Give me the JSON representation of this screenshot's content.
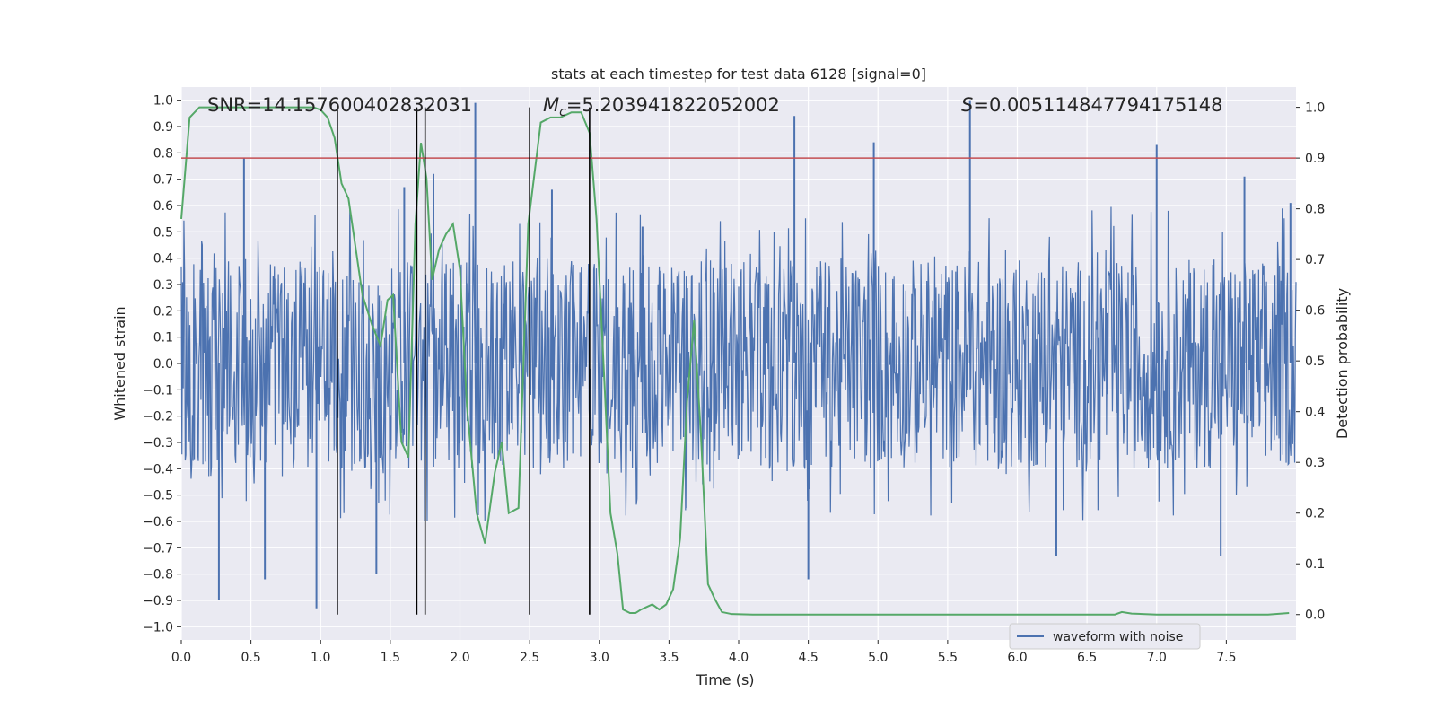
{
  "chart_data": {
    "type": "line",
    "title": "stats at each timestep for test data 6128 [signal=0]",
    "xlabel": "Time (s)",
    "ylabel_left": "Whitened strain",
    "ylabel_right": "Detection probability",
    "xlim": [
      0.0,
      8.0
    ],
    "ylim_left": [
      -1.05,
      1.05
    ],
    "ylim_right": [
      -0.05,
      1.04
    ],
    "x_ticks": [
      "0.0",
      "0.5",
      "1.0",
      "1.5",
      "2.0",
      "2.5",
      "3.0",
      "3.5",
      "4.0",
      "4.5",
      "5.0",
      "5.5",
      "6.0",
      "6.5",
      "7.0",
      "7.5"
    ],
    "y_ticks_left": [
      "1.0",
      "0.9",
      "0.8",
      "0.7",
      "0.6",
      "0.5",
      "0.4",
      "0.3",
      "0.2",
      "0.1",
      "0.0",
      "−0.1",
      "−0.2",
      "−0.3",
      "−0.4",
      "−0.5",
      "−0.6",
      "−0.7",
      "−0.8",
      "−0.9",
      "−1.0"
    ],
    "y_ticks_right": [
      "1.0",
      "0.9",
      "0.8",
      "0.7",
      "0.6",
      "0.5",
      "0.4",
      "0.3",
      "0.2",
      "0.1",
      "0.0"
    ],
    "grid": true,
    "legend_position": "lower-right",
    "annotations": {
      "snr": "SNR=14.157600402832031",
      "mc_symbol": "M",
      "mc_sub": "c",
      "mc_value": "=5.203941822052002",
      "s_symbol": "S",
      "s_value": "=0.005114847794175148"
    },
    "colors": {
      "waveform": "#4c72b0",
      "probability": "#55a868",
      "threshold": "#c44e52",
      "markers": "#000000",
      "plot_bg": "#eaeaf2",
      "grid": "#ffffff"
    },
    "series": [
      {
        "name": "waveform with noise",
        "axis": "left",
        "kind": "noise",
        "typical_amplitude": 0.4,
        "peaks": [
          [
            0.27,
            -0.9
          ],
          [
            0.45,
            0.78
          ],
          [
            0.6,
            -0.82
          ],
          [
            0.97,
            -0.93
          ],
          [
            1.4,
            -0.8
          ],
          [
            1.6,
            0.67
          ],
          [
            1.81,
            0.72
          ],
          [
            2.11,
            0.99
          ],
          [
            2.66,
            0.66
          ],
          [
            3.31,
            0.52
          ],
          [
            4.4,
            0.94
          ],
          [
            4.5,
            -0.82
          ],
          [
            4.97,
            0.84
          ],
          [
            5.66,
            1.0
          ],
          [
            6.28,
            -0.73
          ],
          [
            7.0,
            0.83
          ],
          [
            7.46,
            -0.73
          ],
          [
            7.63,
            0.71
          ],
          [
            7.96,
            0.61
          ]
        ]
      },
      {
        "name": "detection probability",
        "axis": "right",
        "x": [
          0.0,
          0.06,
          0.13,
          0.2,
          0.3,
          0.5,
          0.7,
          0.85,
          0.95,
          1.0,
          1.05,
          1.1,
          1.15,
          1.2,
          1.3,
          1.37,
          1.43,
          1.48,
          1.52,
          1.58,
          1.63,
          1.68,
          1.72,
          1.76,
          1.8,
          1.85,
          1.9,
          1.95,
          2.0,
          2.05,
          2.12,
          2.18,
          2.25,
          2.3,
          2.35,
          2.42,
          2.49,
          2.58,
          2.65,
          2.72,
          2.8,
          2.87,
          2.93,
          2.98,
          3.04,
          3.08,
          3.13,
          3.17,
          3.22,
          3.26,
          3.3,
          3.38,
          3.43,
          3.48,
          3.53,
          3.58,
          3.63,
          3.68,
          3.73,
          3.78,
          3.83,
          3.88,
          3.95,
          4.1,
          4.3,
          4.6,
          4.8,
          5.0,
          5.1,
          5.3,
          5.5,
          5.8,
          6.2,
          6.5,
          6.7,
          6.75,
          6.82,
          7.0,
          7.3,
          7.5,
          7.8,
          7.95
        ],
        "values": [
          0.78,
          0.98,
          1.0,
          1.0,
          1.0,
          1.0,
          1.0,
          1.0,
          1.0,
          0.995,
          0.98,
          0.94,
          0.85,
          0.82,
          0.63,
          0.57,
          0.53,
          0.62,
          0.63,
          0.34,
          0.31,
          0.77,
          0.93,
          0.86,
          0.66,
          0.72,
          0.75,
          0.77,
          0.68,
          0.41,
          0.2,
          0.14,
          0.28,
          0.34,
          0.2,
          0.21,
          0.77,
          0.97,
          0.98,
          0.98,
          0.99,
          0.99,
          0.95,
          0.78,
          0.44,
          0.2,
          0.12,
          0.01,
          0.003,
          0.003,
          0.01,
          0.02,
          0.01,
          0.02,
          0.05,
          0.15,
          0.42,
          0.58,
          0.35,
          0.06,
          0.03,
          0.005,
          0.001,
          0.0,
          0.0,
          0.0,
          0.0,
          0.0,
          0.0,
          0.0,
          0.0,
          0.0,
          0.0,
          0.0,
          0.0,
          0.005,
          0.002,
          0.0,
          0.0,
          0.0,
          0.0,
          0.003
        ]
      }
    ],
    "threshold": 0.9,
    "vertical_markers": [
      1.12,
      1.69,
      1.75,
      2.5,
      2.93
    ]
  }
}
